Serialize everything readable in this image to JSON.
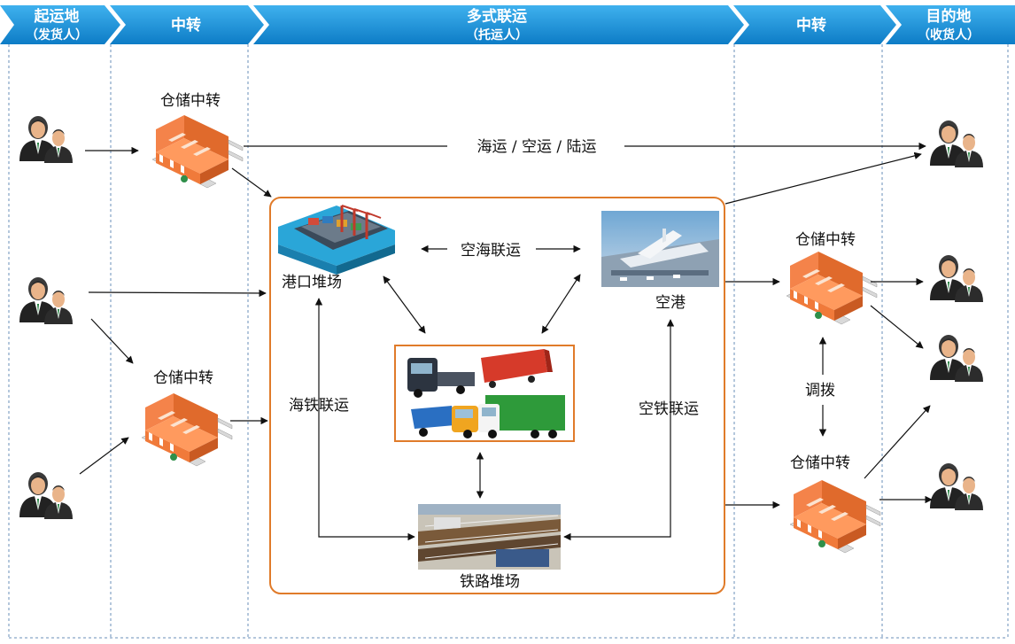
{
  "header": {
    "stages": [
      {
        "title": "起运地",
        "subtitle": "（发货人）"
      },
      {
        "title": "中转",
        "subtitle": ""
      },
      {
        "title": "多式联运",
        "subtitle": "（托运人）"
      },
      {
        "title": "中转",
        "subtitle": ""
      },
      {
        "title": "目的地",
        "subtitle": "（收货人）"
      }
    ],
    "color": "#1a8fd6"
  },
  "nodes": {
    "warehouse_top_left": "仓储中转",
    "warehouse_mid_left": "仓储中转",
    "warehouse_right_top": "仓储中转",
    "warehouse_right_bottom": "仓储中转",
    "port_yard": "港口堆场",
    "airport": "空港",
    "rail_yard": "铁路堆场"
  },
  "links": {
    "sea_air_land": "海运 / 空运 / 陆运",
    "air_sea": "空海联运",
    "sea_rail": "海铁联运",
    "air_rail": "空铁联运",
    "dispatch": "调拨"
  },
  "colors": {
    "box_border": "#e07b2a",
    "warehouse_orange": "#f07a3a",
    "divider": "#6a8fb8",
    "arrow": "#111111"
  },
  "icons": {
    "person": "businessman-icon",
    "warehouse": "warehouse-icon",
    "port": "port-ship-icon",
    "airport": "airport-icon",
    "trucks": "trucks-icon",
    "rail": "rail-yard-icon"
  }
}
